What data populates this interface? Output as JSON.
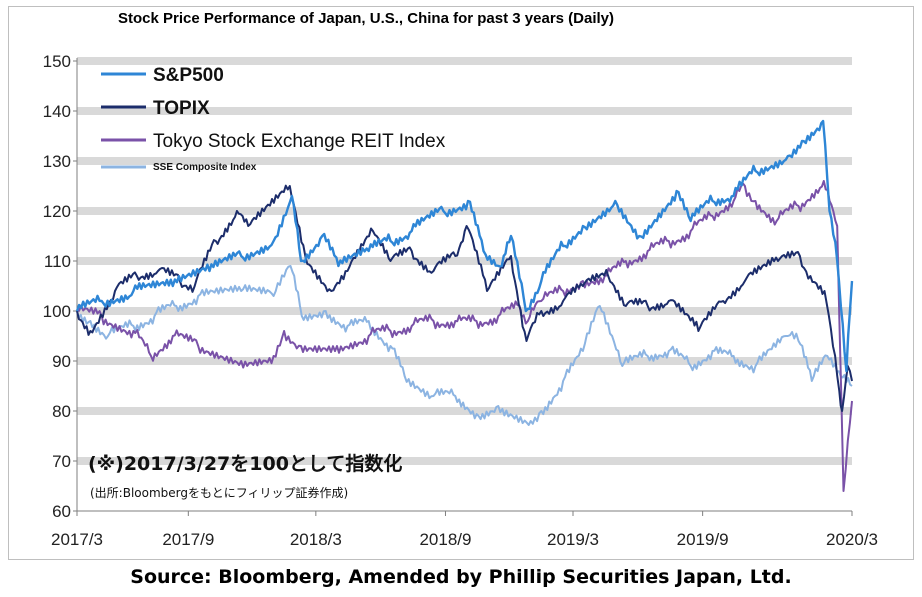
{
  "chart_data": {
    "type": "line",
    "title": "Stock Price Performance of Japan, U.S., China for past 3 years (Daily)",
    "xlabel": "",
    "ylabel": "",
    "ylim": [
      60,
      150
    ],
    "yticks": [
      60,
      70,
      80,
      90,
      100,
      110,
      120,
      130,
      140,
      150
    ],
    "xticks": [
      "2017/3",
      "2017/9",
      "2018/3",
      "2018/9",
      "2019/3",
      "2019/9",
      "2020/3"
    ],
    "grid": "horizontal gray bands",
    "legend_position": "top-left",
    "annotation_main": "(※)2017/3/27を100として指数化",
    "annotation_sub": "(出所:Bloombergをもとにフィリップ証券作成)",
    "series": [
      {
        "name": "S&P500",
        "color": "#2e86d6",
        "points": [
          [
            "2017-03-27",
            100
          ],
          [
            "2017-05-01",
            102
          ],
          [
            "2017-06-15",
            104
          ],
          [
            "2017-08-10",
            105
          ],
          [
            "2017-10-01",
            108
          ],
          [
            "2017-11-15",
            111
          ],
          [
            "2017-12-31",
            114
          ],
          [
            "2018-01-26",
            123
          ],
          [
            "2018-02-08",
            110
          ],
          [
            "2018-03-10",
            115
          ],
          [
            "2018-04-02",
            109
          ],
          [
            "2018-05-15",
            112
          ],
          [
            "2018-06-15",
            114
          ],
          [
            "2018-07-15",
            116
          ],
          [
            "2018-08-29",
            120
          ],
          [
            "2018-10-03",
            122
          ],
          [
            "2018-10-25",
            112
          ],
          [
            "2018-11-20",
            109
          ],
          [
            "2018-12-03",
            115
          ],
          [
            "2018-12-24",
            100
          ],
          [
            "2019-01-15",
            106
          ],
          [
            "2019-02-15",
            113
          ],
          [
            "2019-03-15",
            117
          ],
          [
            "2019-04-30",
            122
          ],
          [
            "2019-06-03",
            115
          ],
          [
            "2019-07-26",
            124
          ],
          [
            "2019-08-15",
            118
          ],
          [
            "2019-09-15",
            122
          ],
          [
            "2019-10-15",
            123
          ],
          [
            "2019-11-15",
            128
          ],
          [
            "2019-12-31",
            131
          ],
          [
            "2020-01-20",
            134
          ],
          [
            "2020-02-19",
            138
          ],
          [
            "2020-02-28",
            120
          ],
          [
            "2020-03-10",
            110
          ],
          [
            "2020-03-23",
            88
          ],
          [
            "2020-03-31",
            106
          ]
        ]
      },
      {
        "name": "TOPIX",
        "color": "#1c2d6b",
        "points": [
          [
            "2017-03-27",
            100
          ],
          [
            "2017-04-15",
            96
          ],
          [
            "2017-05-20",
            104
          ],
          [
            "2017-06-20",
            107
          ],
          [
            "2017-07-20",
            108
          ],
          [
            "2017-08-20",
            106
          ],
          [
            "2017-09-10",
            105
          ],
          [
            "2017-10-10",
            114
          ],
          [
            "2017-11-09",
            120
          ],
          [
            "2017-11-25",
            117
          ],
          [
            "2018-01-23",
            125
          ],
          [
            "2018-02-14",
            111
          ],
          [
            "2018-03-23",
            104
          ],
          [
            "2018-04-15",
            108
          ],
          [
            "2018-05-21",
            116
          ],
          [
            "2018-06-15",
            110
          ],
          [
            "2018-07-15",
            112
          ],
          [
            "2018-08-15",
            108
          ],
          [
            "2018-09-15",
            111
          ],
          [
            "2018-10-01",
            117
          ],
          [
            "2018-10-30",
            104
          ],
          [
            "2018-12-03",
            111
          ],
          [
            "2018-12-25",
            94
          ],
          [
            "2019-01-15",
            100
          ],
          [
            "2019-02-15",
            102
          ],
          [
            "2019-03-15",
            105
          ],
          [
            "2019-04-20",
            107
          ],
          [
            "2019-05-15",
            101
          ],
          [
            "2019-06-15",
            101
          ],
          [
            "2019-07-15",
            102
          ],
          [
            "2019-08-26",
            96
          ],
          [
            "2019-09-30",
            102
          ],
          [
            "2019-10-31",
            106
          ],
          [
            "2019-12-17",
            110
          ],
          [
            "2020-01-17",
            111
          ],
          [
            "2020-02-01",
            107
          ],
          [
            "2020-02-21",
            104
          ],
          [
            "2020-03-13",
            84
          ],
          [
            "2020-03-17",
            80
          ],
          [
            "2020-03-25",
            89
          ],
          [
            "2020-03-31",
            86
          ]
        ]
      },
      {
        "name": "Tokyo Stock Exchange REIT Index",
        "color": "#7a52a8",
        "points": [
          [
            "2017-03-27",
            100
          ],
          [
            "2017-05-01",
            99
          ],
          [
            "2017-06-15",
            96
          ],
          [
            "2017-07-10",
            91
          ],
          [
            "2017-08-10",
            95
          ],
          [
            "2017-09-15",
            93
          ],
          [
            "2017-11-15",
            90
          ],
          [
            "2017-12-31",
            91
          ],
          [
            "2018-01-15",
            96
          ],
          [
            "2018-02-08",
            93
          ],
          [
            "2018-03-31",
            93
          ],
          [
            "2018-05-15",
            95
          ],
          [
            "2018-06-15",
            96
          ],
          [
            "2018-07-15",
            97
          ],
          [
            "2018-08-15",
            98
          ],
          [
            "2018-09-15",
            98
          ],
          [
            "2018-10-15",
            98
          ],
          [
            "2018-11-15",
            99
          ],
          [
            "2018-12-15",
            101
          ],
          [
            "2018-12-27",
            98
          ],
          [
            "2019-01-15",
            102
          ],
          [
            "2019-02-15",
            104
          ],
          [
            "2019-03-15",
            106
          ],
          [
            "2019-04-15",
            107
          ],
          [
            "2019-05-15",
            110
          ],
          [
            "2019-06-15",
            112
          ],
          [
            "2019-07-15",
            114
          ],
          [
            "2019-08-15",
            116
          ],
          [
            "2019-09-15",
            119
          ],
          [
            "2019-10-15",
            122
          ],
          [
            "2019-10-31",
            125
          ],
          [
            "2019-11-15",
            122
          ],
          [
            "2019-12-15",
            118
          ],
          [
            "2020-01-15",
            121
          ],
          [
            "2020-02-20",
            126
          ],
          [
            "2020-03-10",
            117
          ],
          [
            "2020-03-19",
            64
          ],
          [
            "2020-03-31",
            82
          ]
        ]
      },
      {
        "name": "SSE Composite Index",
        "color": "#8cb4e2",
        "points": [
          [
            "2017-03-27",
            100
          ],
          [
            "2017-04-15",
            98
          ],
          [
            "2017-05-10",
            95
          ],
          [
            "2017-06-15",
            97
          ],
          [
            "2017-07-15",
            99
          ],
          [
            "2017-08-15",
            101
          ],
          [
            "2017-09-15",
            103
          ],
          [
            "2017-11-15",
            104
          ],
          [
            "2017-12-31",
            103
          ],
          [
            "2018-01-24",
            109
          ],
          [
            "2018-02-09",
            99
          ],
          [
            "2018-03-15",
            100
          ],
          [
            "2018-04-15",
            97
          ],
          [
            "2018-05-15",
            98
          ],
          [
            "2018-06-15",
            93
          ],
          [
            "2018-07-05",
            87
          ],
          [
            "2018-08-15",
            83
          ],
          [
            "2018-09-15",
            83
          ],
          [
            "2018-10-18",
            79
          ],
          [
            "2018-11-15",
            81
          ],
          [
            "2018-12-31",
            78
          ],
          [
            "2019-01-15",
            80
          ],
          [
            "2019-02-15",
            86
          ],
          [
            "2019-03-15",
            92
          ],
          [
            "2019-04-08",
            101
          ],
          [
            "2019-05-10",
            89
          ],
          [
            "2019-06-15",
            91
          ],
          [
            "2019-07-15",
            92
          ],
          [
            "2019-08-15",
            89
          ],
          [
            "2019-09-15",
            92
          ],
          [
            "2019-10-15",
            91
          ],
          [
            "2019-11-15",
            89
          ],
          [
            "2019-12-31",
            95
          ],
          [
            "2020-01-15",
            94
          ],
          [
            "2020-02-03",
            86
          ],
          [
            "2020-02-25",
            91
          ],
          [
            "2020-03-15",
            87
          ],
          [
            "2020-03-31",
            85
          ]
        ]
      }
    ]
  },
  "footer": {
    "source": "Source: Bloomberg, Amended by Phillip Securities Japan, Ltd."
  }
}
